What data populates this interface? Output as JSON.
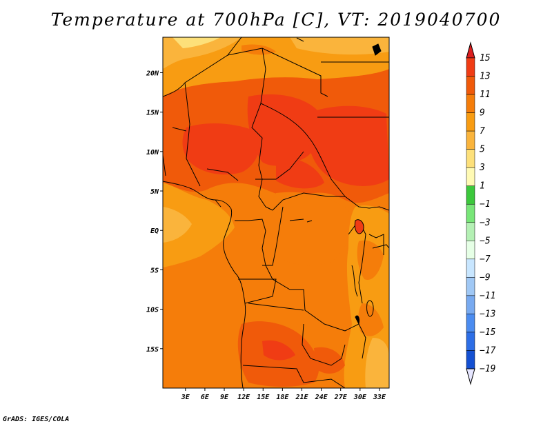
{
  "title": "Temperature at 700hPa [C], VT: 2019040700",
  "credit": "GrADS: IGES/COLA",
  "map": {
    "lon_range": [
      -0.5,
      34.5
    ],
    "lat_range": [
      -20,
      24.5
    ],
    "lat_ticks": [
      {
        "value": 20,
        "label": "20N"
      },
      {
        "value": 15,
        "label": "15N"
      },
      {
        "value": 10,
        "label": "10N"
      },
      {
        "value": 5,
        "label": "5N"
      },
      {
        "value": 0,
        "label": "EQ"
      },
      {
        "value": -5,
        "label": "5S"
      },
      {
        "value": -10,
        "label": "10S"
      },
      {
        "value": -15,
        "label": "15S"
      }
    ],
    "lon_ticks": [
      {
        "value": 3,
        "label": "3E"
      },
      {
        "value": 6,
        "label": "6E"
      },
      {
        "value": 9,
        "label": "9E"
      },
      {
        "value": 12,
        "label": "12E"
      },
      {
        "value": 15,
        "label": "15E"
      },
      {
        "value": 18,
        "label": "18E"
      },
      {
        "value": 21,
        "label": "21E"
      },
      {
        "value": 24,
        "label": "24E"
      },
      {
        "value": 27,
        "label": "27E"
      },
      {
        "value": 30,
        "label": "30E"
      },
      {
        "value": 33,
        "label": "33E"
      }
    ]
  },
  "colorbar": {
    "levels": [
      {
        "label": "15",
        "color": "#f03c14"
      },
      {
        "label": "13",
        "color": "#f05a0a"
      },
      {
        "label": "11",
        "color": "#f57d0a"
      },
      {
        "label": "9",
        "color": "#f89c12"
      },
      {
        "label": "7",
        "color": "#fab43c"
      },
      {
        "label": "5",
        "color": "#fde07a"
      },
      {
        "label": "3",
        "color": "#fffab4"
      },
      {
        "label": "1",
        "color": "#3cc83c"
      },
      {
        "label": "−1",
        "color": "#78e678"
      },
      {
        "label": "−3",
        "color": "#b4f0b4"
      },
      {
        "label": "−5",
        "color": "#e6ffe6"
      },
      {
        "label": "−7",
        "color": "#c8e6ff"
      },
      {
        "label": "−9",
        "color": "#a0c8f5"
      },
      {
        "label": "−11",
        "color": "#78aaf0"
      },
      {
        "label": "−13",
        "color": "#4b8cf0"
      },
      {
        "label": "−15",
        "color": "#2d6ee6"
      },
      {
        "label": "−17",
        "color": "#1450d2"
      },
      {
        "label": "−19",
        "color": "#0f32b4"
      }
    ],
    "top_color": "#dc1e1e",
    "bottom_color": "#e6e6ff",
    "dark_bottom": "#0a0a6e"
  }
}
